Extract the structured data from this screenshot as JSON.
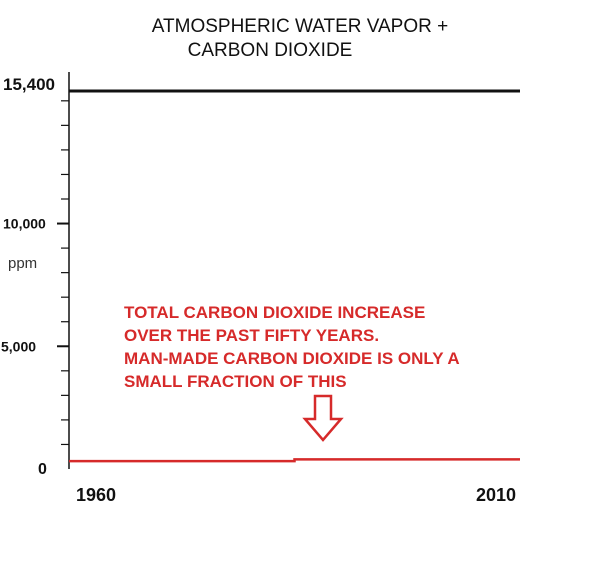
{
  "chart_data": {
    "type": "line",
    "title_lines": [
      "ATMOSPHERIC WATER VAPOR +",
      "CARBON DIOXIDE"
    ],
    "ylabel": "ppm",
    "ylim": [
      0,
      15400
    ],
    "y_ticks": [
      0,
      5000,
      10000,
      15400
    ],
    "y_tick_labels": [
      "0",
      "5,000",
      "10,000",
      "15,400"
    ],
    "x_ticks": [
      1960,
      2010
    ],
    "x_tick_labels": [
      "1960",
      "2010"
    ],
    "grid": false,
    "series": [
      {
        "color": "#111111",
        "x": [
          1960,
          2010
        ],
        "y": [
          15400,
          15400
        ]
      },
      {
        "color": "#d62a2a",
        "x": [
          1960,
          1985,
          1985,
          2010
        ],
        "y": [
          320,
          320,
          390,
          390
        ]
      }
    ],
    "annotation_lines": [
      "TOTAL CARBON DIOXIDE INCREASE",
      "OVER THE PAST FIFTY YEARS.",
      "MAN-MADE CARBON DIOXIDE IS ONLY A",
      "SMALL FRACTION OF THIS"
    ],
    "colors": {
      "axis": "#111111",
      "annotation": "#d62a2a"
    },
    "icon": "down-arrow-icon"
  }
}
